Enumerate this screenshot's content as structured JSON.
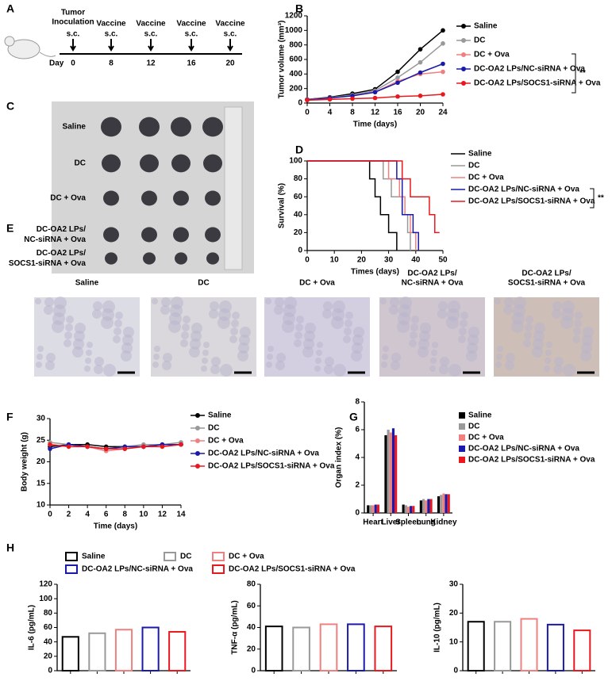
{
  "panel_labels": [
    "A",
    "B",
    "C",
    "D",
    "E",
    "F",
    "G",
    "H"
  ],
  "schedule": {
    "day_label": "Day",
    "events": [
      {
        "title": [
          "Tumor",
          "Inoculation"
        ],
        "route": "s.c.",
        "day": "0"
      },
      {
        "title": [
          "Vaccine"
        ],
        "route": "s.c.",
        "day": "8"
      },
      {
        "title": [
          "Vaccine"
        ],
        "route": "s.c.",
        "day": "12"
      },
      {
        "title": [
          "Vaccine"
        ],
        "route": "s.c.",
        "day": "16"
      },
      {
        "title": [
          "Vaccine"
        ],
        "route": "s.c.",
        "day": "20"
      }
    ]
  },
  "tumor_photo": {
    "rows": [
      [
        "Saline"
      ],
      [
        "DC"
      ],
      [
        "DC + Ova"
      ],
      [
        "DC-OA2 LPs/",
        "NC-siRNA + Ova"
      ],
      [
        "DC-OA2 LPs/",
        "SOCS1-siRNA + Ova"
      ]
    ]
  },
  "histology": {
    "labels": [
      [
        "Saline"
      ],
      [
        "DC"
      ],
      [
        "DC + Ova"
      ],
      [
        "DC-OA2 LPs/",
        "NC-siRNA + Ova"
      ],
      [
        "DC-OA2 LPs/",
        "SOCS1-siRNA + Ova"
      ]
    ]
  },
  "h_legend": [
    {
      "name": "Saline",
      "color": "#000000"
    },
    {
      "name": "DC",
      "color": "#999999"
    },
    {
      "name": "DC + Ova",
      "color": "#f08080"
    },
    {
      "name": "DC-OA2 LPs/NC-siRNA + Ova",
      "color": "#1a1aaa"
    },
    {
      "name": "DC-OA2 LPs/SOCS1-siRNA + Ova",
      "color": "#e8181e"
    }
  ],
  "chart_data": [
    {
      "panel": "B",
      "type": "line",
      "xlabel": "Time (days)",
      "ylabel": "Tumor volume (mm³)",
      "annotation": "**",
      "x": [
        0,
        4,
        8,
        12,
        16,
        20,
        24
      ],
      "xlim": [
        0,
        24
      ],
      "xticks": [
        0,
        4,
        8,
        12,
        16,
        20,
        24
      ],
      "ylim": [
        0,
        1200
      ],
      "yticks": [
        0,
        200,
        400,
        600,
        800,
        1000,
        1200
      ],
      "series": [
        {
          "name": "Saline",
          "color": "#000000",
          "values": [
            50,
            80,
            130,
            190,
            430,
            740,
            1000
          ]
        },
        {
          "name": "DC",
          "color": "#999999",
          "values": [
            50,
            75,
            110,
            170,
            350,
            560,
            820
          ]
        },
        {
          "name": "DC + Ova",
          "color": "#f08080",
          "values": [
            45,
            70,
            100,
            150,
            300,
            400,
            430
          ]
        },
        {
          "name": "DC-OA2 LPs/NC-siRNA + Ova",
          "color": "#1a1aaa",
          "values": [
            45,
            70,
            100,
            150,
            280,
            420,
            540
          ]
        },
        {
          "name": "DC-OA2 LPs/SOCS1-siRNA + Ova",
          "color": "#e8181e",
          "values": [
            40,
            50,
            60,
            70,
            90,
            100,
            120
          ]
        }
      ]
    },
    {
      "panel": "D",
      "type": "step",
      "xlabel": "Times (days)",
      "ylabel": "Survival (%)",
      "annotation": "**",
      "xlim": [
        0,
        50
      ],
      "xticks": [
        0,
        10,
        20,
        30,
        40,
        50
      ],
      "ylim": [
        0,
        100
      ],
      "yticks": [
        0,
        20,
        40,
        60,
        80,
        100
      ],
      "series": [
        {
          "name": "Saline",
          "color": "#000000",
          "x": [
            0,
            23,
            25,
            27,
            30,
            33
          ],
          "values": [
            100,
            80,
            60,
            40,
            20,
            0
          ]
        },
        {
          "name": "DC",
          "color": "#999999",
          "x": [
            0,
            28,
            31,
            35,
            37,
            38
          ],
          "values": [
            100,
            80,
            60,
            40,
            20,
            0
          ]
        },
        {
          "name": "DC + Ova",
          "color": "#f08080",
          "x": [
            0,
            30,
            34,
            36,
            38,
            40
          ],
          "values": [
            100,
            80,
            60,
            40,
            20,
            0
          ]
        },
        {
          "name": "DC-OA2 LPs/NC-siRNA + Ova",
          "color": "#1a1aaa",
          "x": [
            0,
            33,
            35,
            39,
            41
          ],
          "values": [
            100,
            80,
            40,
            20,
            0
          ]
        },
        {
          "name": "DC-OA2 LPs/SOCS1-siRNA + Ova",
          "color": "#e8181e",
          "x": [
            0,
            35,
            38,
            45,
            47
          ],
          "values": [
            100,
            80,
            60,
            40,
            20
          ]
        }
      ]
    },
    {
      "panel": "F",
      "type": "line",
      "xlabel": "Time (days)",
      "ylabel": "Body weight (g)",
      "x": [
        0,
        2,
        4,
        6,
        8,
        10,
        12,
        14
      ],
      "xlim": [
        0,
        14
      ],
      "xticks": [
        0,
        2,
        4,
        6,
        8,
        10,
        12,
        14
      ],
      "ylim": [
        10,
        30
      ],
      "yticks": [
        10,
        15,
        20,
        25,
        30
      ],
      "series": [
        {
          "name": "Saline",
          "color": "#000000",
          "values": [
            23.5,
            24,
            24,
            23.5,
            23.5,
            23.5,
            24,
            24
          ]
        },
        {
          "name": "DC",
          "color": "#999999",
          "values": [
            24.5,
            24,
            23.5,
            23,
            23.5,
            24,
            24,
            24.5
          ]
        },
        {
          "name": "DC + Ova",
          "color": "#f08080",
          "values": [
            24,
            23.5,
            23.5,
            22.5,
            23,
            23.5,
            23.5,
            24
          ]
        },
        {
          "name": "DC-OA2 LPs/NC-siRNA + Ova",
          "color": "#1a1aaa",
          "values": [
            23,
            24,
            23.5,
            23,
            23.5,
            23.5,
            24,
            24
          ]
        },
        {
          "name": "DC-OA2 LPs/SOCS1-siRNA + Ova",
          "color": "#e8181e",
          "values": [
            24,
            23.5,
            23.5,
            23,
            23,
            23.5,
            23.5,
            24
          ]
        }
      ]
    },
    {
      "panel": "G",
      "type": "grouped-bar",
      "ylabel": "Organ index (%)",
      "categories": [
        "Heart",
        "Liver",
        "Spleen",
        "Lung",
        "Kidney"
      ],
      "ylim": [
        0,
        8
      ],
      "yticks": [
        0,
        2,
        4,
        6,
        8
      ],
      "series": [
        {
          "name": "Saline",
          "color": "#000000",
          "values": [
            0.55,
            5.6,
            0.6,
            0.9,
            1.2
          ]
        },
        {
          "name": "DC",
          "color": "#999999",
          "values": [
            0.55,
            6.0,
            0.55,
            1.0,
            1.3
          ]
        },
        {
          "name": "DC + Ova",
          "color": "#f08080",
          "values": [
            0.55,
            5.8,
            0.45,
            0.9,
            1.4
          ]
        },
        {
          "name": "DC-OA2 LPs/NC-siRNA + Ova",
          "color": "#1a1aaa",
          "values": [
            0.6,
            6.1,
            0.5,
            1.0,
            1.35
          ]
        },
        {
          "name": "DC-OA2 LPs/SOCS1-siRNA + Ova",
          "color": "#e8181e",
          "values": [
            0.6,
            5.6,
            0.5,
            1.0,
            1.35
          ]
        }
      ]
    },
    {
      "type": "bar",
      "ylabel": "IL-6 (pg/mL)",
      "categories": [
        null,
        null,
        null,
        null,
        null
      ],
      "values": [
        47,
        52,
        57,
        60,
        54
      ],
      "colors": [
        "#000000",
        "#999999",
        "#f08080",
        "#1a1aaa",
        "#e8181e"
      ],
      "ylim": [
        0,
        120
      ],
      "yticks": [
        0,
        20,
        40,
        60,
        80,
        100,
        120
      ]
    },
    {
      "type": "bar",
      "ylabel": "TNF-α (pg/mL)",
      "categories": [
        null,
        null,
        null,
        null,
        null
      ],
      "values": [
        41,
        40,
        43,
        43,
        41
      ],
      "colors": [
        "#000000",
        "#999999",
        "#f08080",
        "#1a1aaa",
        "#e8181e"
      ],
      "ylim": [
        0,
        80
      ],
      "yticks": [
        0,
        20,
        40,
        60,
        80
      ]
    },
    {
      "type": "bar",
      "ylabel": "IL-10 (pg/mL)",
      "categories": [
        null,
        null,
        null,
        null,
        null
      ],
      "values": [
        17,
        17,
        18,
        16,
        14
      ],
      "colors": [
        "#000000",
        "#999999",
        "#f08080",
        "#1a1aaa",
        "#e8181e"
      ],
      "ylim": [
        0,
        30
      ],
      "yticks": [
        0,
        10,
        20,
        30
      ]
    }
  ]
}
